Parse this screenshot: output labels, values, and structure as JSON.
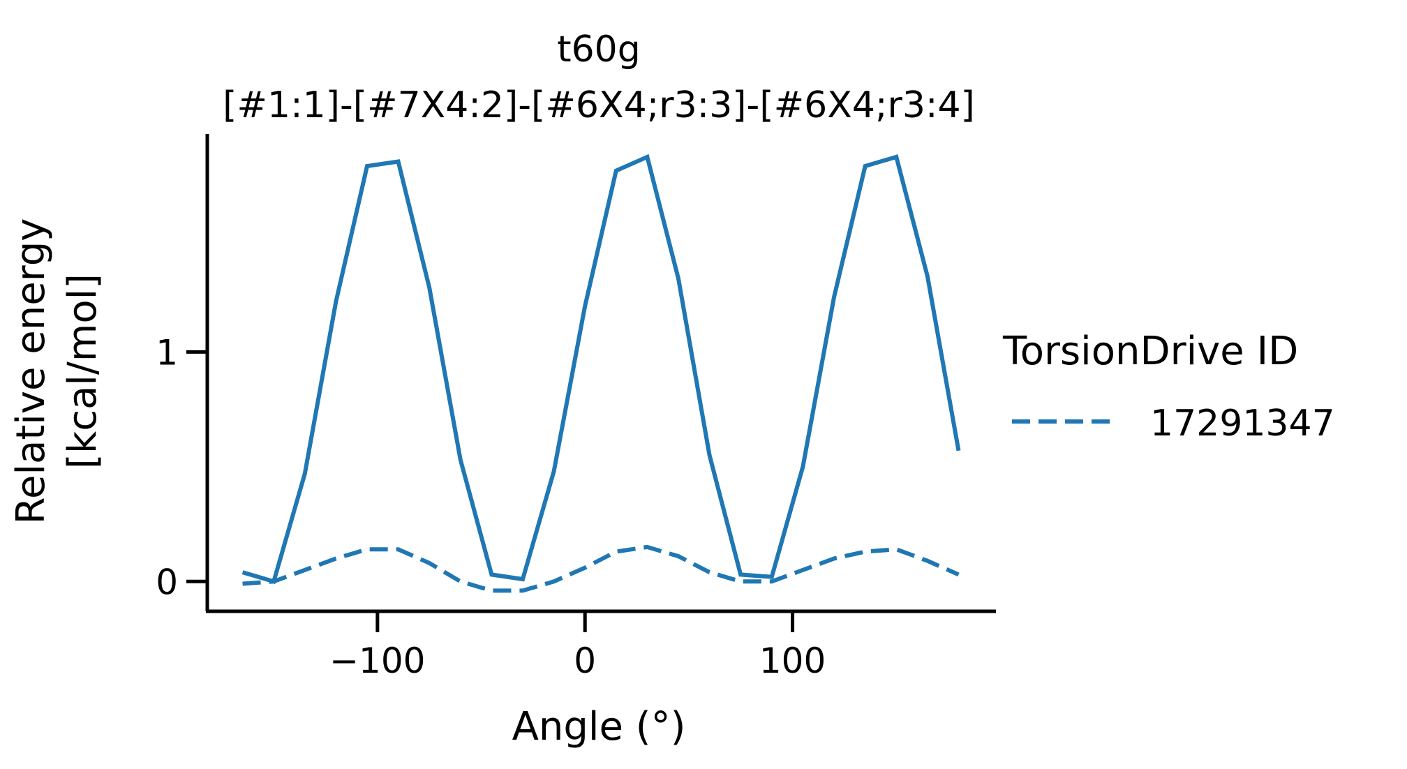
{
  "chart_data": {
    "type": "line",
    "title_lines": [
      "t60g",
      "[#1:1]-[#7X4:2]-[#6X4;r3:3]-[#6X4;r3:4]"
    ],
    "xlabel": "Angle (°)",
    "ylabel_lines": [
      "Relative energy",
      "[kcal/mol]"
    ],
    "xlim": [
      -182,
      198
    ],
    "ylim": [
      -0.13,
      1.95
    ],
    "x_ticks": [
      -100,
      0,
      100
    ],
    "x_tick_labels": [
      "−100",
      "0",
      "100"
    ],
    "y_ticks": [
      0,
      1
    ],
    "y_tick_labels": [
      "0",
      "1"
    ],
    "grid": false,
    "legend": {
      "title": "TorsionDrive ID",
      "placement": "right",
      "entries": [
        {
          "label": "17291347",
          "style": "dashed",
          "color": "#1f77b4"
        }
      ]
    },
    "series": [
      {
        "style": "solid",
        "color": "#1f77b4",
        "x": [
          -165,
          -150,
          -135,
          -120,
          -105,
          -90,
          -75,
          -60,
          -45,
          -30,
          -15,
          0,
          15,
          30,
          45,
          60,
          75,
          90,
          105,
          120,
          135,
          150,
          165,
          180
        ],
        "y": [
          0.04,
          0.0,
          0.47,
          1.22,
          1.81,
          1.83,
          1.28,
          0.53,
          0.03,
          0.01,
          0.48,
          1.2,
          1.79,
          1.85,
          1.32,
          0.55,
          0.03,
          0.02,
          0.5,
          1.24,
          1.81,
          1.85,
          1.33,
          0.57
        ]
      },
      {
        "name": "17291347",
        "style": "dashed",
        "color": "#1f77b4",
        "x": [
          -165,
          -150,
          -135,
          -120,
          -105,
          -90,
          -75,
          -60,
          -45,
          -30,
          -15,
          0,
          15,
          30,
          45,
          60,
          75,
          90,
          105,
          120,
          135,
          150,
          165,
          180
        ],
        "y": [
          -0.01,
          0.0,
          0.05,
          0.1,
          0.14,
          0.14,
          0.08,
          0.0,
          -0.04,
          -0.04,
          0.0,
          0.06,
          0.13,
          0.15,
          0.11,
          0.04,
          0.0,
          0.0,
          0.05,
          0.1,
          0.13,
          0.14,
          0.09,
          0.03
        ]
      }
    ]
  }
}
